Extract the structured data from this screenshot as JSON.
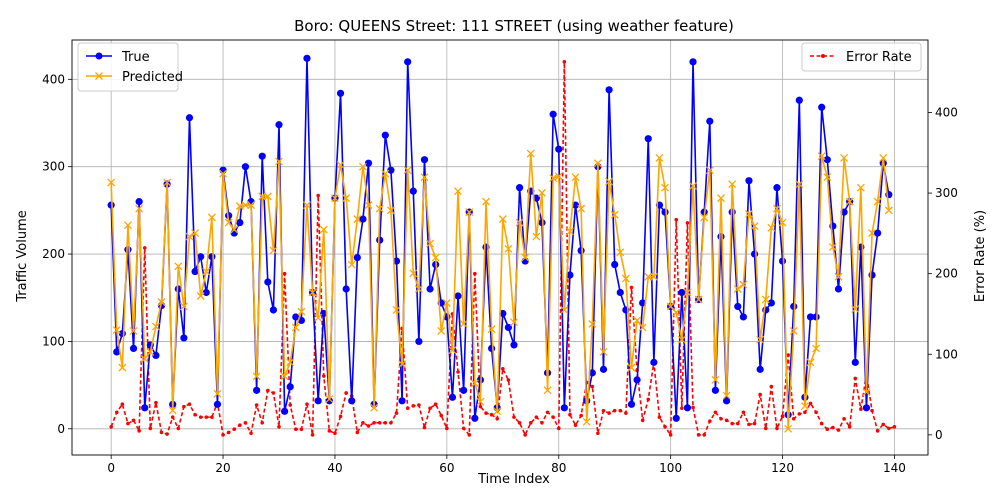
{
  "chart_data": {
    "type": "line",
    "title": "Boro: QUEENS Street: 111 STREET (using weather feature)",
    "xlabel": "Time Index",
    "ylabel": "Traffic Volume",
    "ylabel_right": "Error Rate (%)",
    "xlim": [
      -7,
      146
    ],
    "ylim": [
      -30,
      445
    ],
    "ylim_right": [
      -25,
      490
    ],
    "x_ticks": [
      0,
      20,
      40,
      60,
      80,
      100,
      120,
      140
    ],
    "y_ticks": [
      0,
      100,
      200,
      300,
      400
    ],
    "y_ticks_right": [
      0,
      100,
      200,
      300,
      400
    ],
    "grid": true,
    "legend_left": "upper-left",
    "legend_right": "upper-right",
    "series": [
      {
        "name": "True",
        "axis": "left",
        "color": "#0000ff",
        "marker": "circle",
        "values": [
          256,
          88,
          109,
          205,
          92,
          260,
          24,
          96,
          84,
          141,
          280,
          28,
          160,
          104,
          356,
          180,
          197,
          156,
          197,
          28,
          296,
          244,
          224,
          236,
          300,
          260,
          44,
          312,
          168,
          136,
          348,
          20,
          48,
          128,
          124,
          424,
          156,
          32,
          132,
          32,
          264,
          384,
          160,
          32,
          196,
          240,
          304,
          28,
          216,
          336,
          296,
          192,
          32,
          420,
          272,
          100,
          308,
          160,
          188,
          144,
          128,
          36,
          152,
          44,
          248,
          12,
          56,
          208,
          92,
          24,
          132,
          116,
          96,
          276,
          192,
          272,
          264,
          236,
          64,
          360,
          320,
          24,
          176,
          256,
          204,
          32,
          64,
          300,
          68,
          388,
          188,
          156,
          136,
          28,
          56,
          144,
          332,
          76,
          256,
          248,
          140,
          12,
          156,
          24,
          420,
          148,
          248,
          352,
          44,
          220,
          32,
          248,
          140,
          128,
          284,
          200,
          68,
          136,
          144,
          276,
          192,
          16,
          140,
          376,
          36,
          128,
          128,
          368,
          308,
          232,
          160,
          248,
          260,
          76,
          208,
          24,
          176,
          224,
          304,
          268
        ]
      },
      {
        "name": "Predicted",
        "axis": "left",
        "color": "#ffa500",
        "marker": "x",
        "values": [
          282,
          113,
          70,
          233,
          112,
          252,
          80,
          88,
          117,
          145,
          282,
          21,
          186,
          140,
          220,
          224,
          152,
          180,
          242,
          40,
          292,
          236,
          228,
          255,
          256,
          256,
          60,
          266,
          266,
          204,
          306,
          60,
          76,
          116,
          134,
          256,
          156,
          127,
          228,
          34,
          264,
          302,
          264,
          188,
          240,
          300,
          256,
          24,
          252,
          292,
          250,
          136,
          74,
          296,
          178,
          160,
          288,
          212,
          196,
          112,
          144,
          90,
          272,
          120,
          248,
          52,
          31,
          260,
          114,
          20,
          240,
          206,
          122,
          236,
          196,
          315,
          220,
          270,
          44,
          287,
          289,
          136,
          226,
          288,
          252,
          8,
          120,
          304,
          88,
          283,
          245,
          202,
          172,
          70,
          124,
          116,
          174,
          174,
          310,
          276,
          140,
          133,
          102,
          156,
          278,
          148,
          242,
          296,
          56,
          264,
          38,
          280,
          160,
          165,
          246,
          232,
          102,
          148,
          230,
          252,
          236,
          0,
          112,
          280,
          26,
          76,
          92,
          312,
          288,
          208,
          174,
          310,
          260,
          137,
          276,
          42,
          224,
          260,
          310,
          250
        ]
      },
      {
        "name": "Error Rate",
        "axis": "right",
        "color": "#ff0000",
        "marker": "dot",
        "values": [
          10,
          28,
          38,
          14,
          18,
          5,
          232,
          8,
          40,
          3,
          1,
          22,
          8,
          35,
          38,
          25,
          22,
          22,
          22,
          40,
          0,
          3,
          7,
          12,
          15,
          2,
          37,
          15,
          55,
          52,
          10,
          200,
          37,
          7,
          7,
          38,
          0,
          297,
          73,
          5,
          2,
          23,
          52,
          48,
          3,
          15,
          11,
          15,
          15,
          15,
          15,
          27,
          132,
          33,
          36,
          37,
          9,
          33,
          38,
          24,
          8,
          150,
          78,
          8,
          0,
          200,
          35,
          27,
          25,
          20,
          82,
          68,
          22,
          15,
          0,
          15,
          22,
          15,
          28,
          22,
          8,
          463,
          25,
          12,
          24,
          65,
          60,
          2,
          30,
          27,
          30,
          30,
          27,
          183,
          80,
          18,
          44,
          90,
          22,
          10,
          0,
          267,
          33,
          263,
          34,
          0,
          0,
          17,
          28,
          20,
          18,
          14,
          14,
          28,
          13,
          14,
          50,
          8,
          60,
          8,
          23,
          99,
          20,
          26,
          28,
          39,
          28,
          14,
          7,
          9,
          6,
          20,
          10,
          70,
          32,
          75,
          30,
          5,
          13,
          8,
          10
        ]
      }
    ]
  }
}
